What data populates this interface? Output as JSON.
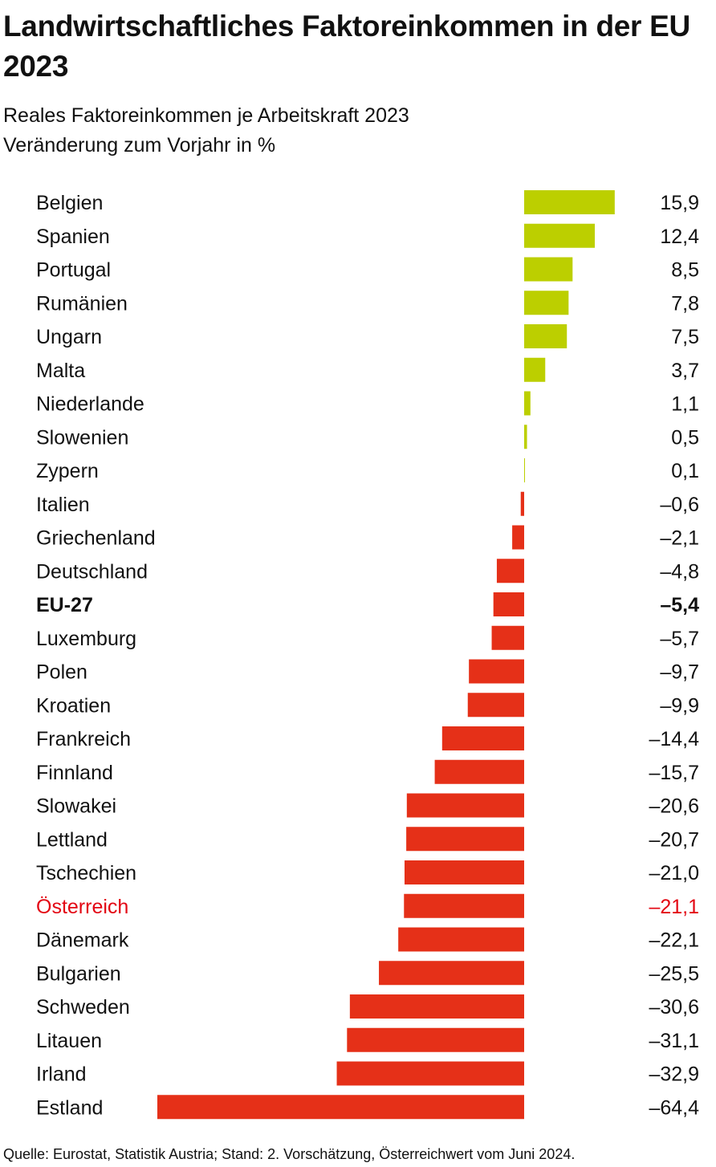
{
  "colors": {
    "positive": "#bccf00",
    "negative": "#e53018",
    "highlight": "#e30613",
    "text": "#111111"
  },
  "chart_data": {
    "type": "bar",
    "orientation": "horizontal",
    "title": "Landwirtschaftliches Faktoreinkommen in der EU 2023",
    "subtitle_line1": "Reales Faktoreinkommen je Arbeitskraft 2023",
    "subtitle_line2": "Veränderung zum Vorjahr in %",
    "categories": [
      "Belgien",
      "Spanien",
      "Portugal",
      "Rumänien",
      "Ungarn",
      "Malta",
      "Niederlande",
      "Slowenien",
      "Zypern",
      "Italien",
      "Griechenland",
      "Deutschland",
      "EU-27",
      "Luxemburg",
      "Polen",
      "Kroatien",
      "Frankreich",
      "Finnland",
      "Slowakei",
      "Lettland",
      "Tschechien",
      "Österreich",
      "Dänemark",
      "Bulgarien",
      "Schweden",
      "Litauen",
      "Irland",
      "Estland"
    ],
    "values": [
      15.9,
      12.4,
      8.5,
      7.8,
      7.5,
      3.7,
      1.1,
      0.5,
      0.1,
      -0.6,
      -2.1,
      -4.8,
      -5.4,
      -5.7,
      -9.7,
      -9.9,
      -14.4,
      -15.7,
      -20.6,
      -20.7,
      -21.0,
      -21.1,
      -22.1,
      -25.5,
      -30.6,
      -31.1,
      -32.9,
      -64.4
    ],
    "value_labels": [
      "15,9",
      "12,4",
      "8,5",
      "7,8",
      "7,5",
      "3,7",
      "1,1",
      "0,5",
      "0,1",
      "–0,6",
      "–2,1",
      "–4,8",
      "–5,4",
      "–5,7",
      "–9,7",
      "–9,9",
      "–14,4",
      "–15,7",
      "–20,6",
      "–20,7",
      "–21,0",
      "–21,1",
      "–22,1",
      "–25,5",
      "–30,6",
      "–31,1",
      "–32,9",
      "–64,4"
    ],
    "bold_category": "EU-27",
    "highlight_category": "Österreich",
    "xlim": [
      -64.4,
      15.9
    ]
  },
  "source": "Quelle: Eurostat, Statistik Austria; Stand: 2. Vorschätzung, Österreichwert vom Juni 2024."
}
